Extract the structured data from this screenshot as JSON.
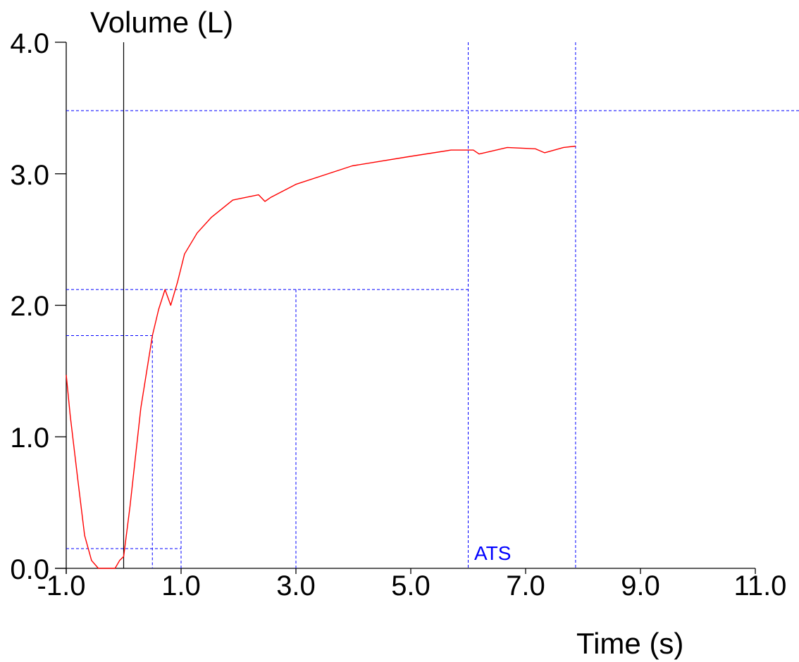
{
  "chart_data": {
    "type": "line",
    "title": "",
    "xlabel": "Time (s)",
    "ylabel": "Volume (L)",
    "xlim": [
      -1.0,
      11.0
    ],
    "ylim": [
      0.0,
      4.0
    ],
    "x_ticks": [
      "-1.0",
      "1.0",
      "3.0",
      "5.0",
      "7.0",
      "9.0",
      "11.0"
    ],
    "x_tick_values": [
      -1,
      1,
      3,
      5,
      7,
      9,
      11
    ],
    "y_ticks": [
      "0.0",
      "1.0",
      "2.0",
      "3.0",
      "4.0"
    ],
    "y_tick_values": [
      0,
      1,
      2,
      3,
      4
    ],
    "grid": false,
    "legend": null,
    "annotations": [
      {
        "text": "ATS",
        "x": 6.1,
        "y": 0.05,
        "color": "#0000ff"
      }
    ],
    "reference_lines": {
      "vertical_solid": [
        {
          "x": 0.0,
          "color": "#000000"
        }
      ],
      "vertical_dashed": [
        {
          "x": 0.5,
          "y_top": 1.77
        },
        {
          "x": 1.0,
          "y_top": 2.12
        },
        {
          "x": 3.0,
          "y_top": 2.12
        },
        {
          "x": 6.0,
          "y_top": 4.0
        },
        {
          "x": 7.87,
          "y_top": 4.0
        }
      ],
      "horizontal_dashed": [
        {
          "y": 3.48,
          "x_start": -1.0,
          "x_end": 11.0
        },
        {
          "y": 2.12,
          "x_start": -1.0,
          "x_end": 6.0
        },
        {
          "y": 1.77,
          "x_start": -1.0,
          "x_end": 0.5
        },
        {
          "y": 0.15,
          "x_start": -1.0,
          "x_end": 1.0
        }
      ],
      "dashed_color": "#0000ff"
    },
    "series": [
      {
        "name": "Volume",
        "color": "#ff0000",
        "x": [
          -1.0,
          -0.93,
          -0.8,
          -0.68,
          -0.56,
          -0.44,
          -0.15,
          -0.07,
          0.0,
          0.11,
          0.3,
          0.5,
          0.61,
          0.72,
          0.82,
          0.94,
          1.06,
          1.28,
          1.53,
          1.9,
          2.35,
          2.46,
          2.56,
          3.0,
          3.98,
          4.96,
          5.7,
          6.09,
          6.19,
          6.68,
          7.17,
          7.33,
          7.66,
          7.87
        ],
        "values": [
          1.47,
          1.16,
          0.68,
          0.25,
          0.06,
          0.0,
          0.0,
          0.06,
          0.09,
          0.47,
          1.22,
          1.77,
          1.97,
          2.12,
          2.0,
          2.18,
          2.39,
          2.55,
          2.67,
          2.8,
          2.84,
          2.79,
          2.82,
          2.92,
          3.06,
          3.13,
          3.18,
          3.18,
          3.15,
          3.2,
          3.19,
          3.16,
          3.2,
          3.21
        ]
      }
    ]
  },
  "labels": {
    "y_title": "Volume (L)",
    "x_title": "Time (s)",
    "ats": "ATS",
    "y_ticks": [
      "4.0",
      "3.0",
      "2.0",
      "1.0",
      "0.0"
    ],
    "x_ticks": [
      "-1.0",
      "1.0",
      "3.0",
      "5.0",
      "7.0",
      "9.0",
      "11.0"
    ]
  }
}
